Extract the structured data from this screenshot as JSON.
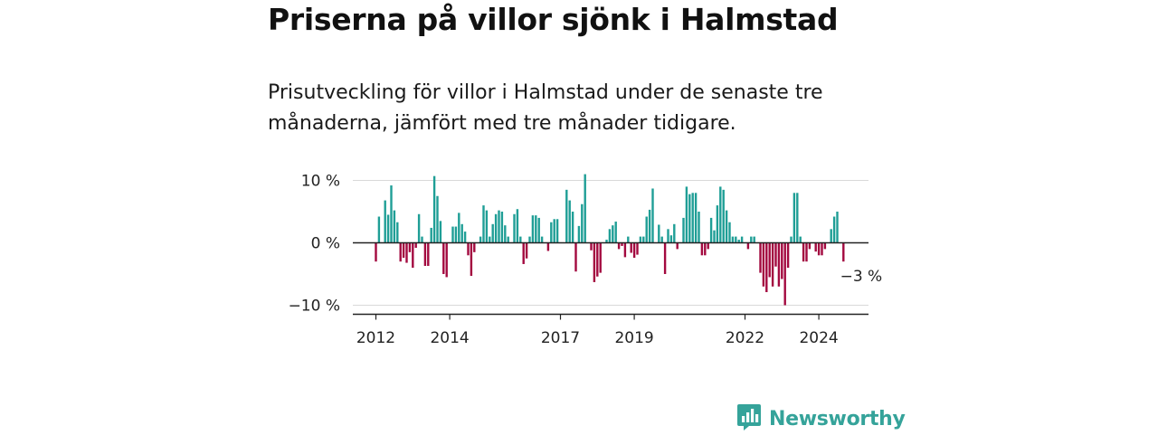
{
  "header": {
    "title": "Priserna på villor sjönk i Halmstad",
    "subtitle": "Prisutveckling för villor i Halmstad under de senaste tre månaderna, jämfört med tre månader tidigare."
  },
  "brand": {
    "name": "Newsworthy",
    "logo_icon": "bar-chart-speech-bubble-icon",
    "color": "#35a39a"
  },
  "colors": {
    "positive": "#1f9e96",
    "negative": "#a3093f",
    "zero_line": "#222222",
    "grid": "#d9d9d9"
  },
  "chart_data": {
    "type": "bar",
    "title": "",
    "xlabel": "",
    "ylabel": "",
    "unit": "%",
    "ylim": [
      -12,
      11.5
    ],
    "y_ticks": [
      {
        "value": 10,
        "label": "10 %"
      },
      {
        "value": 0,
        "label": "0 %"
      },
      {
        "value": -10,
        "label": "−10 %"
      }
    ],
    "x_ticks": [
      {
        "value": "2012-01",
        "label": "2012"
      },
      {
        "value": "2014-01",
        "label": "2014"
      },
      {
        "value": "2017-01",
        "label": "2017"
      },
      {
        "value": "2019-01",
        "label": "2019"
      },
      {
        "value": "2022-01",
        "label": "2022"
      },
      {
        "value": "2024-01",
        "label": "2024"
      }
    ],
    "start_month": "2012-01",
    "annotation": {
      "month": "2024-08",
      "label": "−3 %"
    },
    "series": [
      {
        "values": [
          -3,
          4.2,
          0,
          6.8,
          4.5,
          9.2,
          5.2,
          3.3,
          -3,
          -2.4,
          -3.2,
          -1.5,
          -4,
          -0.8,
          4.6,
          1,
          -3.7,
          -3.7,
          2.4,
          10.7,
          7.5,
          3.5,
          -5,
          -5.5,
          0,
          2.6,
          2.6,
          4.8,
          3,
          1.8,
          -2,
          -5.3,
          -1.5,
          0,
          1,
          6,
          5.2,
          1,
          3,
          4.6,
          5.2,
          5,
          2.8,
          1,
          0,
          4.6,
          5.4,
          1,
          -3.4,
          -2.5,
          1,
          4.4,
          4.4,
          4,
          1,
          0,
          -1.3,
          3.3,
          3.8,
          3.8,
          0,
          0,
          8.5,
          6.8,
          5,
          -4.6,
          2.7,
          6.2,
          11,
          0,
          -1.2,
          -6.3,
          -5.4,
          -4.8,
          0,
          0.5,
          2.2,
          2.8,
          3.4,
          -1,
          -0.5,
          -2.3,
          1,
          -1.6,
          -2.4,
          -1.9,
          1,
          1,
          4.2,
          5.3,
          8.7,
          0,
          2.9,
          1,
          -5,
          2.2,
          1.2,
          3,
          -1,
          0,
          4,
          9,
          7.8,
          8,
          8,
          5,
          -2,
          -2,
          -1,
          4,
          2,
          6,
          9,
          8.5,
          5.2,
          3.3,
          1,
          1,
          0.5,
          1,
          0,
          -1,
          1,
          1,
          0,
          -4.8,
          -7,
          -7.9,
          -5.5,
          -7,
          -3.8,
          -7,
          -5.8,
          -10,
          -4,
          1,
          8,
          8,
          1,
          -3,
          -3,
          -1,
          0,
          -1.4,
          -2,
          -2,
          -1,
          0,
          2.2,
          4.2,
          5,
          0,
          -3
        ]
      }
    ]
  }
}
